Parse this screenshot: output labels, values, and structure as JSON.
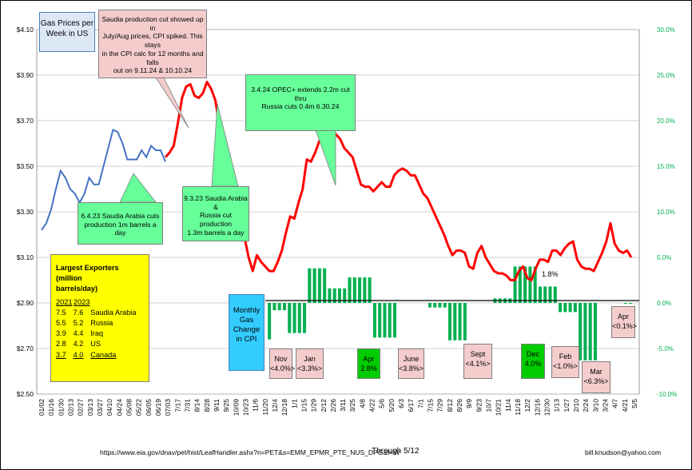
{
  "chart_data": {
    "type": "bar+line",
    "title": "Gas Prices per Week in US",
    "left_axis": {
      "ylim": [
        2.5,
        4.1
      ],
      "ticks": [
        "$4.10",
        "$3.90",
        "$3.70",
        "$3.50",
        "$3.30",
        "$3.10",
        "$2.90",
        "$2.70",
        "$2.50"
      ]
    },
    "right_axis": {
      "ylim": [
        -10,
        30
      ],
      "ticks": [
        "30.0%",
        "25.0%",
        "20.0%",
        "15.0%",
        "10.0%",
        "5.0%",
        "0.0%",
        "-5.0%",
        "-10.0%"
      ]
    },
    "x_tick_labels": [
      "01/02",
      "01/16",
      "01/30",
      "02/13",
      "02/27",
      "03/13",
      "03/27",
      "04/10",
      "04/24",
      "05/08",
      "05/22",
      "06/05",
      "06/19",
      "07/03",
      "7/17",
      "7/31",
      "8/14",
      "8/28",
      "9/11",
      "9/25",
      "10/09",
      "10/23",
      "11/6",
      "11/20",
      "12/4",
      "12/18",
      "1/1",
      "1/15",
      "1/29",
      "2/12",
      "2/26",
      "3/11",
      "3/25",
      "4/8",
      "4/22",
      "5/6",
      "5/20",
      "6/3",
      "6/17",
      "7/1",
      "7/15",
      "7/29",
      "8/12",
      "8/26",
      "9/9",
      "9/23",
      "10/7",
      "10/21",
      "11/4",
      "11/18",
      "12/2",
      "12/16",
      "12/30",
      "1/13",
      "1/27",
      "2/10",
      "2/24",
      "3/10",
      "3/24",
      "4/7",
      "4/21",
      "5/5"
    ],
    "series": [
      {
        "type": "line",
        "color": "#4472c4",
        "values": [
          3.22,
          3.25,
          3.31,
          3.4,
          3.48,
          3.45,
          3.4,
          3.38,
          3.34,
          3.38,
          3.45,
          3.42,
          3.42,
          3.5,
          3.58,
          3.66,
          3.65,
          3.6,
          3.53,
          3.53,
          3.53,
          3.57,
          3.54,
          3.59,
          3.57,
          3.57,
          3.52
        ]
      },
      {
        "type": "line",
        "color": "#ff0000",
        "values": [
          3.54,
          3.56,
          3.59,
          3.69,
          3.8,
          3.85,
          3.86,
          3.81,
          3.8,
          3.82,
          3.87,
          3.84,
          3.79,
          3.68,
          3.62,
          3.55,
          3.45,
          3.34,
          3.26,
          3.19,
          3.1,
          3.04,
          3.11,
          3.08,
          3.06,
          3.04,
          3.04,
          3.08,
          3.13,
          3.21,
          3.28,
          3.27,
          3.34,
          3.4,
          3.53,
          3.52,
          3.56,
          3.61,
          3.64,
          3.67,
          3.66,
          3.64,
          3.62,
          3.58,
          3.56,
          3.54,
          3.48,
          3.42,
          3.41,
          3.41,
          3.39,
          3.41,
          3.43,
          3.41,
          3.41,
          3.46,
          3.48,
          3.49,
          3.48,
          3.46,
          3.46,
          3.42,
          3.38,
          3.36,
          3.32,
          3.28,
          3.24,
          3.2,
          3.15,
          3.11,
          3.13,
          3.13,
          3.12,
          3.06,
          3.05,
          3.12,
          3.15,
          3.1,
          3.07,
          3.04,
          3.03,
          3.03,
          3.02,
          3.0,
          3.0,
          3.04,
          3.06,
          3.01,
          3.0,
          3.05,
          3.09,
          3.09,
          3.08,
          3.13,
          3.13,
          3.11,
          3.14,
          3.16,
          3.17,
          3.09,
          3.06,
          3.05,
          3.05,
          3.04,
          3.08,
          3.12,
          3.17,
          3.25,
          3.16,
          3.13,
          3.12,
          3.13,
          3.1
        ]
      },
      {
        "type": "bar",
        "color": "#00b050",
        "name": "Monthly Gas Change in CPI",
        "values": [
          -4.0,
          -0.8,
          -0.8,
          -0.8,
          -3.3,
          -3.3,
          -3.3,
          -3.3,
          3.8,
          3.8,
          3.8,
          3.8,
          1.6,
          1.6,
          1.6,
          1.6,
          2.8,
          2.8,
          2.8,
          2.8,
          2.8,
          -3.8,
          -3.8,
          -3.8,
          -3.8,
          -3.8,
          0,
          0,
          0,
          0,
          0,
          0,
          -0.5,
          -0.5,
          -0.5,
          -0.5,
          -4.1,
          -4.1,
          -4.1,
          -4.1,
          0,
          0,
          0,
          0,
          0,
          0.5,
          0.5,
          0.5,
          0.5,
          4.0,
          4.0,
          4.0,
          4.0,
          4.0,
          1.8,
          1.8,
          1.8,
          1.8,
          -1.0,
          -1.0,
          -1.0,
          -1.0,
          -6.3,
          -6.3,
          -6.3,
          -6.3,
          0,
          0,
          0,
          0,
          0,
          -0.1,
          -0.1
        ]
      }
    ],
    "point_label": "1.8%"
  },
  "boxes": {
    "gas_title": [
      "Gas Prices per",
      "Week in US"
    ],
    "saudia": [
      "Saudia production cut showed up in",
      "July/Aug prices, CPI spiked.  This stays",
      "in the CPI calc for 12 months and falls",
      "out on 9.11.24 & 10.10.24"
    ],
    "opec": [
      "3.4.24 OPEC+ extends  2.2m cut thru",
      "Russia cuts 0.4m 6.30.24"
    ],
    "saudi_june": [
      "6.4.23 Saudia Arabia cuts",
      "production 1m barrels a day"
    ],
    "saudi_sept": [
      "9.3.23 Saudia Arabia &",
      "Russia cut production",
      "1.3m barrels a day"
    ],
    "monthly": [
      "Monthly",
      "Gas",
      "Change",
      "in CPI"
    ]
  },
  "exporters": {
    "title_lines": [
      "Largest Exporters (million",
      "barrels/day)"
    ],
    "headers": [
      "2021",
      "2023"
    ],
    "rows": [
      {
        "y2021": "7.5",
        "y2023": "7.6",
        "country": "Saudia Arabia"
      },
      {
        "y2021": "5.5",
        "y2023": "5.2",
        "country": "Russia"
      },
      {
        "y2021": "3.9",
        "y2023": "4.4",
        "country": "Iraq"
      },
      {
        "y2021": "2.8",
        "y2023": "4.2",
        "country": "US"
      },
      {
        "y2021": "3.7",
        "y2023": "4.0",
        "country": "Canada"
      }
    ]
  },
  "month_labels": [
    {
      "name": "Nov",
      "value": "<4.0%>",
      "color": "#f4cccc"
    },
    {
      "name": "Jan",
      "value": "<3.3%>",
      "color": "#f4cccc"
    },
    {
      "name": "Apr",
      "value": "2.8%",
      "color": "#00cc00"
    },
    {
      "name": "June",
      "value": "<3.8%>",
      "color": "#f4cccc"
    },
    {
      "name": "Sept",
      "value": "<4.1%>",
      "color": "#f4cccc"
    },
    {
      "name": "Dec",
      "value": "4.0%",
      "color": "#00cc00"
    },
    {
      "name": "Feb",
      "value": "<1.0%>",
      "color": "#f4cccc"
    },
    {
      "name": "Mar",
      "value": "<6.3%>",
      "color": "#f4cccc"
    },
    {
      "name": "Apr",
      "value": "<0.1%>",
      "color": "#f4cccc"
    }
  ],
  "footer": {
    "source": "https://www.eia.gov/dnav/pet/hist/LeafHandler.ashx?n=PET&s=EMM_EPMR_PTE_NUS_DPG&f=W",
    "through": "Through   5/12",
    "author": "bill.knudson@yahoo.com"
  }
}
